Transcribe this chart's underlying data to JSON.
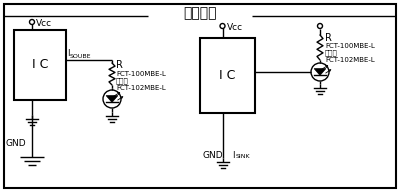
{
  "title": "参考回路",
  "bg_color": "#ffffff",
  "line_color": "#000000",
  "text_color": "#000000",
  "figsize": [
    4.0,
    1.92
  ],
  "dpi": 100,
  "label_Vcc": "Vcc",
  "label_GND": "GND",
  "label_R": "R",
  "label_ISOUBE": "I",
  "label_ISOUBE_sub": "SOUBE",
  "label_ISINK": "I",
  "label_ISINK_sub": "SINK",
  "label_FCT1": "FCT-100MBE-L",
  "label_mata": "または",
  "label_FCT2": "FCT-102MBE-L"
}
